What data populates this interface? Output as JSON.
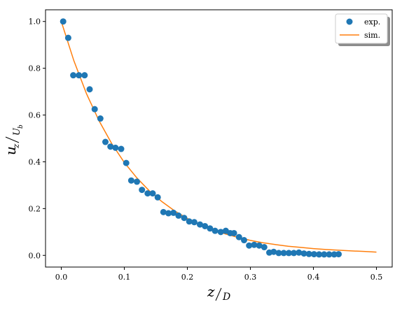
{
  "chart_data": {
    "type": "scatter",
    "xlabel": {
      "main": "z",
      "sub": "D"
    },
    "ylabel": {
      "main": "u",
      "main_sub": "z",
      "den": "U",
      "den_sub": "b"
    },
    "xlim": [
      -0.025,
      0.525
    ],
    "ylim": [
      -0.05,
      1.05
    ],
    "x_ticks": [
      0.0,
      0.1,
      0.2,
      0.3,
      0.4,
      0.5
    ],
    "x_tick_labels": [
      "0.0",
      "0.1",
      "0.2",
      "0.3",
      "0.4",
      "0.5"
    ],
    "y_ticks": [
      0.0,
      0.2,
      0.4,
      0.6,
      0.8,
      1.0
    ],
    "y_tick_labels": [
      "0.0",
      "0.2",
      "0.4",
      "0.6",
      "0.8",
      "1.0"
    ],
    "grid": false,
    "legend_position": "top-right",
    "series": [
      {
        "name": "exp.",
        "kind": "scatter",
        "color": "#1f77b4",
        "x": [
          0.003,
          0.011,
          0.019,
          0.028,
          0.037,
          0.045,
          0.053,
          0.062,
          0.07,
          0.078,
          0.086,
          0.095,
          0.103,
          0.111,
          0.12,
          0.128,
          0.137,
          0.145,
          0.153,
          0.162,
          0.17,
          0.178,
          0.186,
          0.195,
          0.203,
          0.211,
          0.22,
          0.228,
          0.236,
          0.244,
          0.253,
          0.261,
          0.268,
          0.274,
          0.282,
          0.29,
          0.298,
          0.306,
          0.314,
          0.322,
          0.33,
          0.337,
          0.345,
          0.353,
          0.361,
          0.369,
          0.377,
          0.385,
          0.393,
          0.401,
          0.409,
          0.417,
          0.425,
          0.433,
          0.44
        ],
        "y": [
          1.0,
          0.93,
          0.77,
          0.77,
          0.77,
          0.71,
          0.625,
          0.585,
          0.485,
          0.465,
          0.46,
          0.455,
          0.395,
          0.32,
          0.315,
          0.28,
          0.265,
          0.265,
          0.248,
          0.185,
          0.18,
          0.182,
          0.17,
          0.16,
          0.145,
          0.142,
          0.132,
          0.125,
          0.115,
          0.105,
          0.1,
          0.105,
          0.095,
          0.095,
          0.078,
          0.065,
          0.042,
          0.045,
          0.042,
          0.035,
          0.012,
          0.015,
          0.01,
          0.01,
          0.01,
          0.01,
          0.012,
          0.008,
          0.006,
          0.005,
          0.004,
          0.004,
          0.004,
          0.004,
          0.005
        ]
      },
      {
        "name": "sim.",
        "kind": "line",
        "color": "#ff7f0e",
        "x": [
          0.0,
          0.02,
          0.04,
          0.06,
          0.08,
          0.1,
          0.12,
          0.14,
          0.16,
          0.18,
          0.2,
          0.22,
          0.24,
          0.26,
          0.28,
          0.3,
          0.32,
          0.34,
          0.36,
          0.38,
          0.4,
          0.42,
          0.44,
          0.46,
          0.48,
          0.5
        ],
        "y": [
          1.0,
          0.832,
          0.691,
          0.575,
          0.478,
          0.397,
          0.331,
          0.275,
          0.229,
          0.19,
          0.158,
          0.132,
          0.11,
          0.092,
          0.077,
          0.064,
          0.054,
          0.046,
          0.039,
          0.034,
          0.029,
          0.025,
          0.022,
          0.019,
          0.017,
          0.014
        ]
      }
    ]
  }
}
